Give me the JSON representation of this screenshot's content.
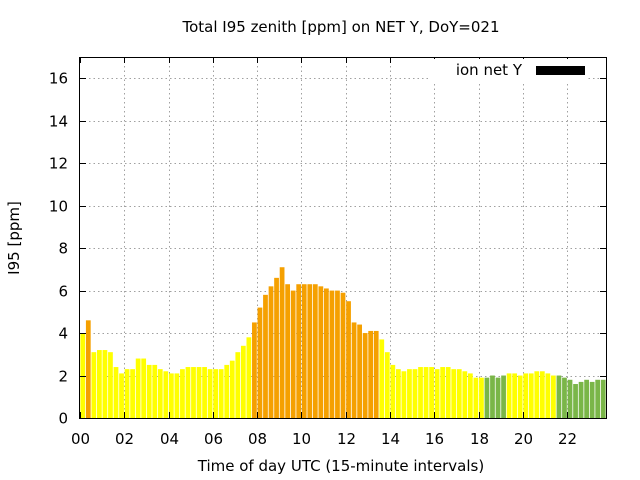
{
  "chart_data": {
    "type": "bar",
    "title": "Total I95 zenith [ppm] on NET Y, DoY=021",
    "xlabel": "Time of day UTC (15-minute intervals)",
    "ylabel": "I95 [ppm]",
    "ylim": [
      0,
      17
    ],
    "xlim": [
      0,
      23.75
    ],
    "legend": {
      "label": "ion net Y",
      "swatch_color": "#000000",
      "placement": "top-right"
    },
    "grid": true,
    "x_ticks": [
      {
        "value": 0,
        "label": "00"
      },
      {
        "value": 2,
        "label": "02"
      },
      {
        "value": 4,
        "label": "04"
      },
      {
        "value": 6,
        "label": "06"
      },
      {
        "value": 8,
        "label": "08"
      },
      {
        "value": 10,
        "label": "10"
      },
      {
        "value": 12,
        "label": "12"
      },
      {
        "value": 14,
        "label": "14"
      },
      {
        "value": 16,
        "label": "16"
      },
      {
        "value": 18,
        "label": "18"
      },
      {
        "value": 20,
        "label": "20"
      },
      {
        "value": 22,
        "label": "22"
      }
    ],
    "y_ticks": [
      {
        "value": 0,
        "label": "0"
      },
      {
        "value": 2,
        "label": "2"
      },
      {
        "value": 4,
        "label": "4"
      },
      {
        "value": 6,
        "label": "6"
      },
      {
        "value": 8,
        "label": "8"
      },
      {
        "value": 10,
        "label": "10"
      },
      {
        "value": 12,
        "label": "12"
      },
      {
        "value": 14,
        "label": "14"
      },
      {
        "value": 16,
        "label": "16"
      }
    ],
    "interval_hours": 0.25,
    "color_levels": {
      "Y": "#ffff00",
      "O": "#f5a000",
      "G": "#7ab648"
    },
    "values": [
      4.0,
      4.6,
      3.1,
      3.2,
      3.2,
      3.1,
      2.4,
      2.1,
      2.3,
      2.3,
      2.8,
      2.8,
      2.5,
      2.5,
      2.3,
      2.2,
      2.1,
      2.1,
      2.3,
      2.4,
      2.4,
      2.4,
      2.4,
      2.3,
      2.3,
      2.3,
      2.5,
      2.7,
      3.1,
      3.4,
      3.8,
      4.5,
      5.2,
      5.8,
      6.2,
      6.6,
      7.1,
      6.3,
      6.0,
      6.3,
      6.3,
      6.3,
      6.3,
      6.2,
      6.1,
      6.0,
      6.0,
      5.9,
      5.5,
      4.5,
      4.4,
      4.0,
      4.1,
      4.1,
      3.7,
      3.1,
      2.5,
      2.3,
      2.2,
      2.3,
      2.3,
      2.4,
      2.4,
      2.4,
      2.3,
      2.4,
      2.4,
      2.3,
      2.3,
      2.2,
      2.1,
      1.9,
      1.9,
      1.9,
      2.0,
      1.9,
      2.0,
      2.1,
      2.1,
      2.0,
      2.1,
      2.1,
      2.2,
      2.2,
      2.1,
      2.0,
      2.0,
      1.9,
      1.8,
      1.6,
      1.7,
      1.8,
      1.7,
      1.8,
      1.8
    ],
    "levels": "YOYYYYYYYYYYYYYYYYYYYYYYYYYYYYYOOOOOOOOOOOOOOOOOOOOOOOYYYYYYYYYYYYYYYYYYYGGGGYYYYYYYYYGGGGGGGGG"
  }
}
